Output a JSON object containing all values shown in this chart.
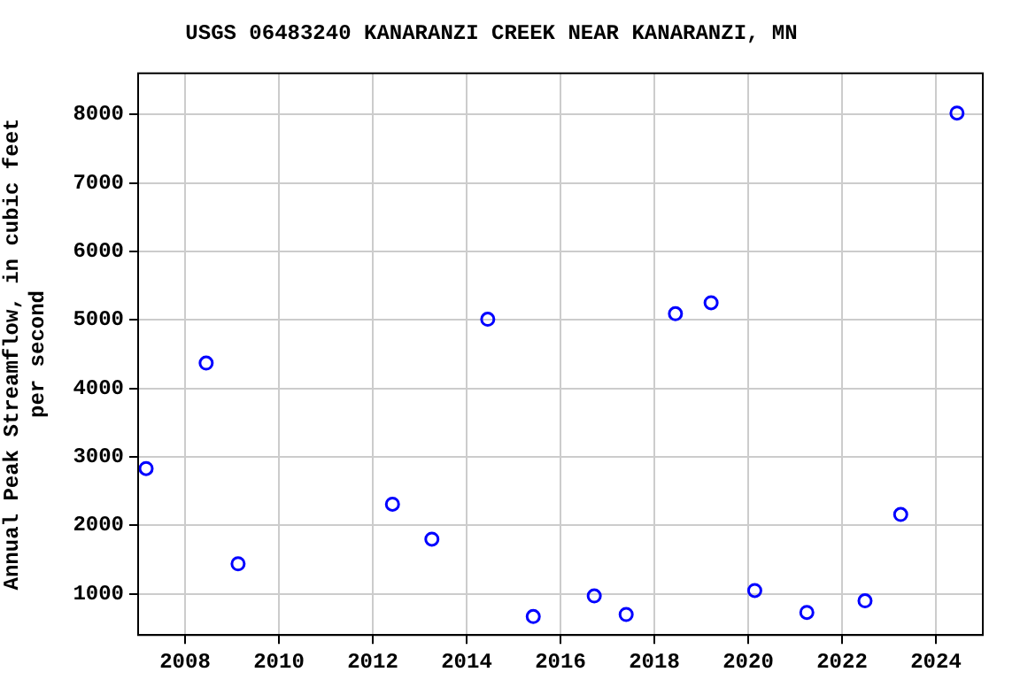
{
  "chart_data": {
    "type": "scatter",
    "title": "USGS 06483240 KANARANZI CREEK NEAR KANARANZI, MN",
    "ylabel": "Annual Peak Streamflow, in cubic feet per second",
    "x": [
      2007.17,
      2008.45,
      2009.13,
      2012.42,
      2013.26,
      2014.45,
      2015.42,
      2016.72,
      2017.4,
      2018.45,
      2019.21,
      2020.14,
      2021.25,
      2022.49,
      2023.25,
      2024.45
    ],
    "series": [
      {
        "color": "#0000ff",
        "values": [
          2830,
          4370,
          1440,
          2310,
          1800,
          5010,
          670,
          970,
          700,
          5090,
          5250,
          1050,
          730,
          900,
          2160,
          8020
        ]
      }
    ],
    "xlim": [
      2007,
      2025
    ],
    "xticks": [
      2008,
      2010,
      2012,
      2014,
      2016,
      2018,
      2020,
      2022,
      2024
    ],
    "ylim": [
      400,
      8600
    ],
    "yticks": [
      1000,
      2000,
      3000,
      4000,
      5000,
      6000,
      7000,
      8000
    ],
    "grid": true,
    "legend": false,
    "marker": "circle"
  }
}
